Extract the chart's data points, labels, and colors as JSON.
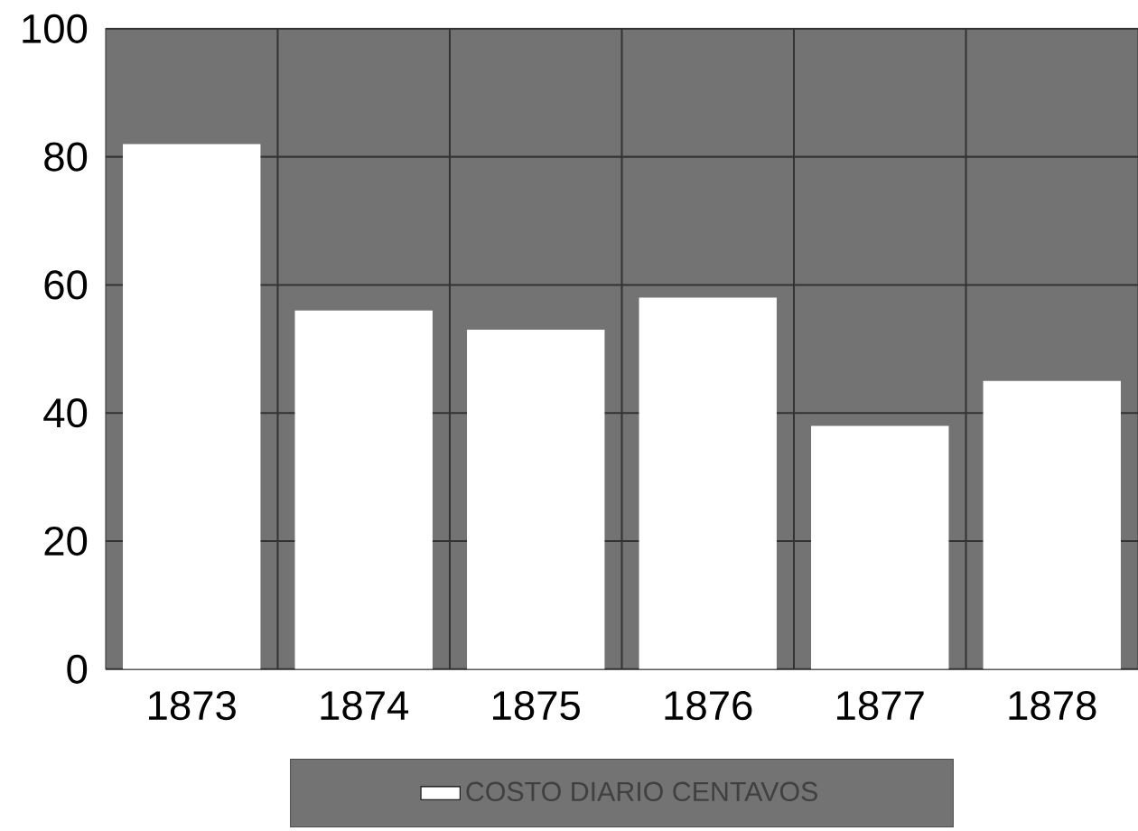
{
  "chart_data": {
    "type": "bar",
    "categories": [
      "1873",
      "1874",
      "1875",
      "1876",
      "1877",
      "1878"
    ],
    "series": [
      {
        "name": "COSTO DIARIO CENTAVOS",
        "color": "#ffffff",
        "values": [
          82,
          56,
          53,
          58,
          38,
          45
        ]
      }
    ],
    "ylim": [
      0,
      100
    ],
    "yticks": [
      0,
      20,
      40,
      60,
      80,
      100
    ],
    "grid": true,
    "legend": "bottom"
  }
}
